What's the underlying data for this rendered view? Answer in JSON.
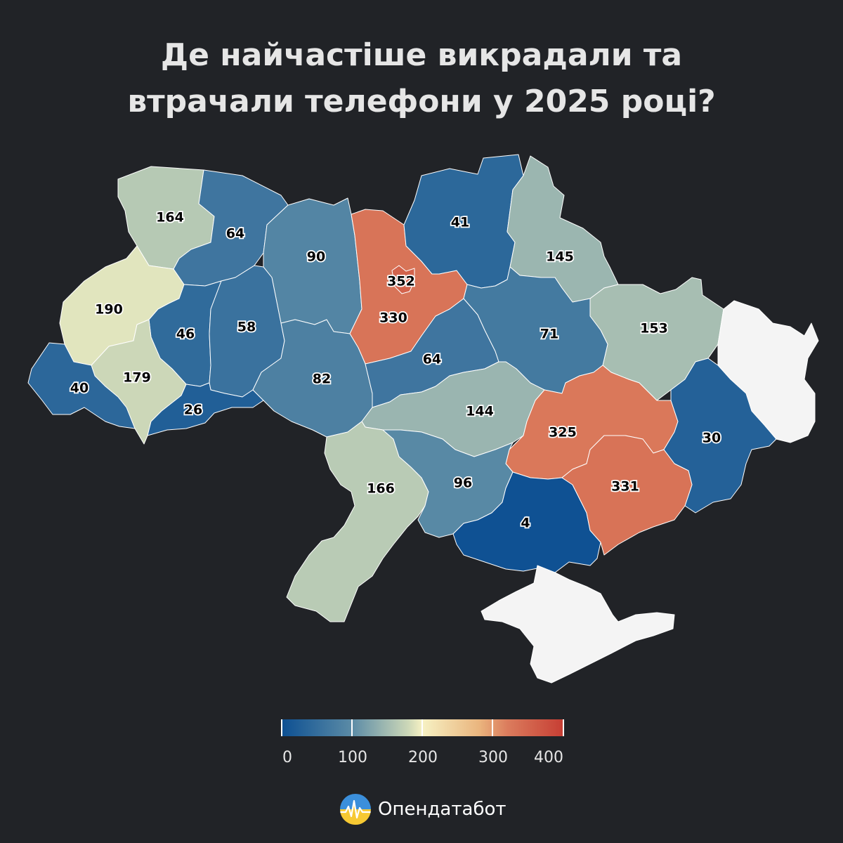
{
  "title": {
    "line1": "Де найчастіше викрадали та",
    "line2": "втрачали телефони у 2025 році?"
  },
  "map": {
    "regions": [
      {
        "id": "lviv",
        "value": 190
      },
      {
        "id": "volyn",
        "value": 164
      },
      {
        "id": "rivne",
        "value": 64
      },
      {
        "id": "zhytomyr",
        "value": 90
      },
      {
        "id": "kyiv-oblast",
        "value": 330
      },
      {
        "id": "kyiv-city",
        "value": 352
      },
      {
        "id": "chernihiv",
        "value": 41
      },
      {
        "id": "sumy",
        "value": 145
      },
      {
        "id": "kharkiv",
        "value": 153
      },
      {
        "id": "luhansk",
        "value": null,
        "status": "no data"
      },
      {
        "id": "ternopil",
        "value": 46
      },
      {
        "id": "khmelnytskyi",
        "value": 58
      },
      {
        "id": "ivano-frankivsk",
        "value": 179
      },
      {
        "id": "zakarpattia",
        "value": 40
      },
      {
        "id": "chernivtsi",
        "value": 26
      },
      {
        "id": "vinnytsia",
        "value": 82
      },
      {
        "id": "cherkasy",
        "value": 64
      },
      {
        "id": "poltava",
        "value": 71
      },
      {
        "id": "kirovohrad",
        "value": 144
      },
      {
        "id": "dnipropetrovsk",
        "value": 325
      },
      {
        "id": "donetsk",
        "value": 30
      },
      {
        "id": "odesa",
        "value": 166
      },
      {
        "id": "mykolaiv",
        "value": 96
      },
      {
        "id": "kherson",
        "value": 4
      },
      {
        "id": "zaporizhzhia",
        "value": 331
      },
      {
        "id": "crimea",
        "value": null,
        "status": "no data"
      }
    ],
    "no_data_color": "#f4f4f4"
  },
  "legend": {
    "ticks": [
      "0",
      "100",
      "200",
      "300",
      "400"
    ],
    "min": 0,
    "max": 400,
    "colors": [
      "#0c4f92",
      "#5b8ba6",
      "#cdd8b8",
      "#f6f1c3",
      "#eab57e",
      "#db7c5d",
      "#c63d33"
    ]
  },
  "brand": {
    "name": "Опендатабот",
    "logo_icon": "opendatabot-logo-icon"
  }
}
